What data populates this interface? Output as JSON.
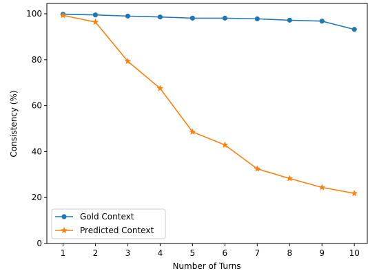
{
  "chart_data": {
    "type": "line",
    "title": "",
    "xlabel": "Number of Turns",
    "ylabel": "Consistency (%)",
    "x": [
      1,
      2,
      3,
      4,
      5,
      6,
      7,
      8,
      9,
      10
    ],
    "xticks": [
      1,
      2,
      3,
      4,
      5,
      6,
      7,
      8,
      9,
      10
    ],
    "yticks": [
      0,
      20,
      40,
      60,
      80,
      100
    ],
    "xlim": [
      0.5,
      10.4
    ],
    "ylim": [
      0,
      104.5
    ],
    "grid": false,
    "legend_position": "lower-left",
    "series": [
      {
        "name": "Gold Context",
        "color": "#1f77b4",
        "marker": "circle",
        "values": [
          99.8,
          99.5,
          99.0,
          98.6,
          98.1,
          98.1,
          97.8,
          97.2,
          96.8,
          93.2
        ]
      },
      {
        "name": "Predicted Context",
        "color": "#ff7f0e",
        "marker": "star",
        "values": [
          99.3,
          96.4,
          79.3,
          67.5,
          48.6,
          42.9,
          32.5,
          28.3,
          24.4,
          21.8
        ]
      }
    ]
  }
}
